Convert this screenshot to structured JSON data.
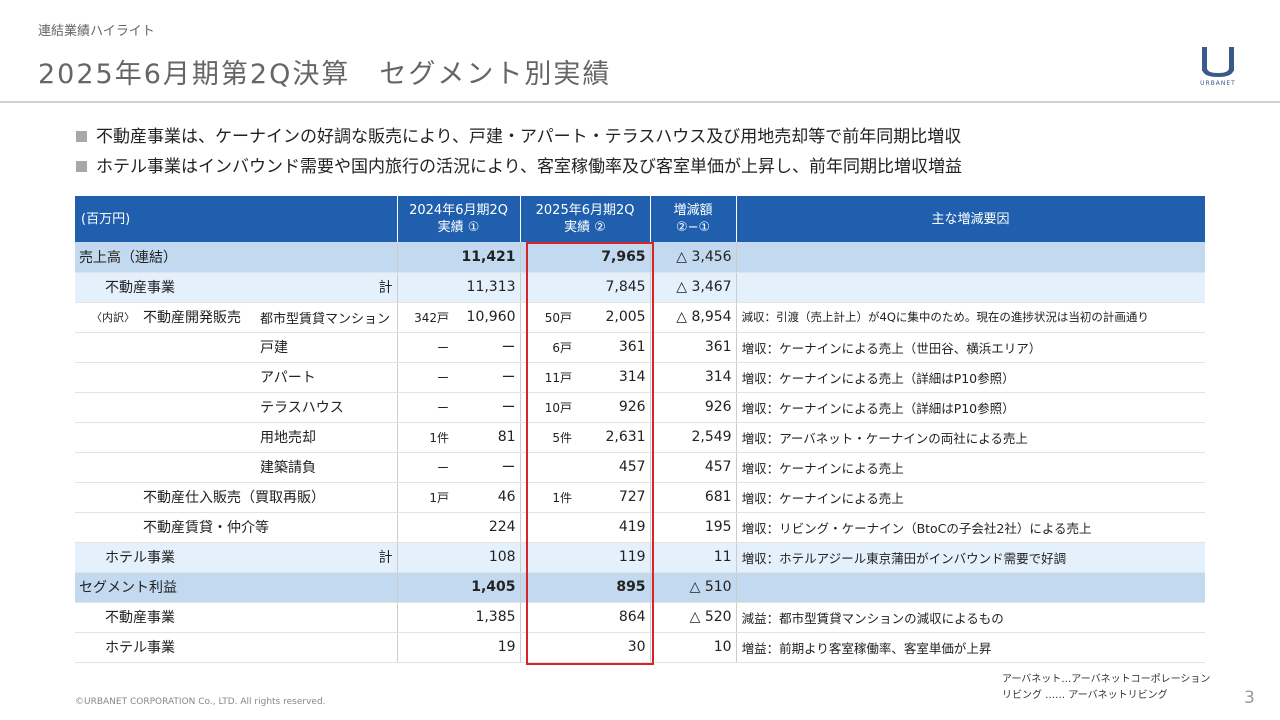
{
  "header": {
    "section": "連結業績ハイライト",
    "title": "2025年6月期第2Q決算　セグメント別実績",
    "logo_letter": "U",
    "logo_text": "URBANET"
  },
  "bullets": [
    "不動産事業は、ケーナインの好調な販売により、戸建・アパート・テラスハウス及び用地売却等で前年同期比増収",
    "ホテル事業はインバウンド需要や国内旅行の活況により、客室稼働率及び客室単価が上昇し、前年同期比増収増益"
  ],
  "table": {
    "headers": {
      "unit": "(百万円)",
      "col_2024_l1": "2024年6月期2Q",
      "col_2024_l2": "実績 ①",
      "col_2025_l1": "2025年6月期2Q",
      "col_2025_l2": "実績 ②",
      "col_diff_l1": "増減額",
      "col_diff_l2": "②−①",
      "col_reason": "主な増減要因"
    },
    "rows": {
      "sales": {
        "label": "売上高（連結）",
        "v2024": "11,421",
        "v2025": "7,965",
        "diff": "△ 3,456",
        "reason": ""
      },
      "re_total": {
        "label": "不動産事業",
        "suffix": "計",
        "v2024": "11,313",
        "v2025": "7,845",
        "diff": "△ 3,467",
        "reason": ""
      },
      "mansion": {
        "prefix": "〈内訳〉",
        "group": "不動産開発販売",
        "item": "都市型賃貸マンション",
        "u2024": "342戸",
        "v2024": "10,960",
        "u2025": "50戸",
        "v2025": "2,005",
        "diff": "△ 8,954",
        "reason": "減収：引渡（売上計上）が4Qに集中のため。現在の進捗状況は当初の計画通り"
      },
      "kodate": {
        "item": "戸建",
        "u2024": "ー",
        "v2024": "ー",
        "u2025": "6戸",
        "v2025": "361",
        "diff": "361",
        "reason": "増収：ケーナインによる売上（世田谷、横浜エリア）"
      },
      "apart": {
        "item": "アパート",
        "u2024": "ー",
        "v2024": "ー",
        "u2025": "11戸",
        "v2025": "314",
        "diff": "314",
        "reason": "増収：ケーナインによる売上（詳細はP10参照）"
      },
      "terrace": {
        "item": "テラスハウス",
        "u2024": "ー",
        "v2024": "ー",
        "u2025": "10戸",
        "v2025": "926",
        "diff": "926",
        "reason": "増収：ケーナインによる売上（詳細はP10参照）"
      },
      "land": {
        "item": "用地売却",
        "u2024": "1件",
        "v2024": "81",
        "u2025": "5件",
        "v2025": "2,631",
        "diff": "2,549",
        "reason": "増収：アーバネット・ケーナインの両社による売上"
      },
      "contract": {
        "item": "建築請負",
        "u2024": "ー",
        "v2024": "ー",
        "u2025": "",
        "v2025": "457",
        "diff": "457",
        "reason": "増収：ケーナインによる売上"
      },
      "resale": {
        "label": "不動産仕入販売（買取再販）",
        "u2024": "1戸",
        "v2024": "46",
        "u2025": "1件",
        "v2025": "727",
        "diff": "681",
        "reason": "増収：ケーナインによる売上"
      },
      "rental": {
        "label": "不動産賃貸・仲介等",
        "v2024": "224",
        "v2025": "419",
        "diff": "195",
        "reason": "増収：リビング・ケーナイン（BtoCの子会社2社）による売上"
      },
      "hotel_total": {
        "label": "ホテル事業",
        "suffix": "計",
        "v2024": "108",
        "v2025": "119",
        "diff": "11",
        "reason": "増収：ホテルアジール東京蒲田がインバウンド需要で好調"
      },
      "profit": {
        "label": "セグメント利益",
        "v2024": "1,405",
        "v2025": "895",
        "diff": "△ 510",
        "reason": ""
      },
      "profit_re": {
        "label": "不動産事業",
        "v2024": "1,385",
        "v2025": "864",
        "diff": "△ 520",
        "reason": "減益：都市型賃貸マンションの減収によるもの"
      },
      "profit_hotel": {
        "label": "ホテル事業",
        "v2024": "19",
        "v2025": "30",
        "diff": "10",
        "reason": "増益：前期より客室稼働率、客室単価が上昇"
      }
    }
  },
  "notes": {
    "line1": "アーバネット…アーバネットコーポレーション",
    "line2": "リビング …… アーバネットリビング"
  },
  "footer": {
    "copyright": "©URBANET CORPORATION Co., LTD. All rights reserved.",
    "page": "3"
  },
  "colors": {
    "header_bg": "#1f5fae",
    "total_bg": "#c3d9ef",
    "sub_bg": "#e4f0fb",
    "highlight": "#d7232a"
  }
}
